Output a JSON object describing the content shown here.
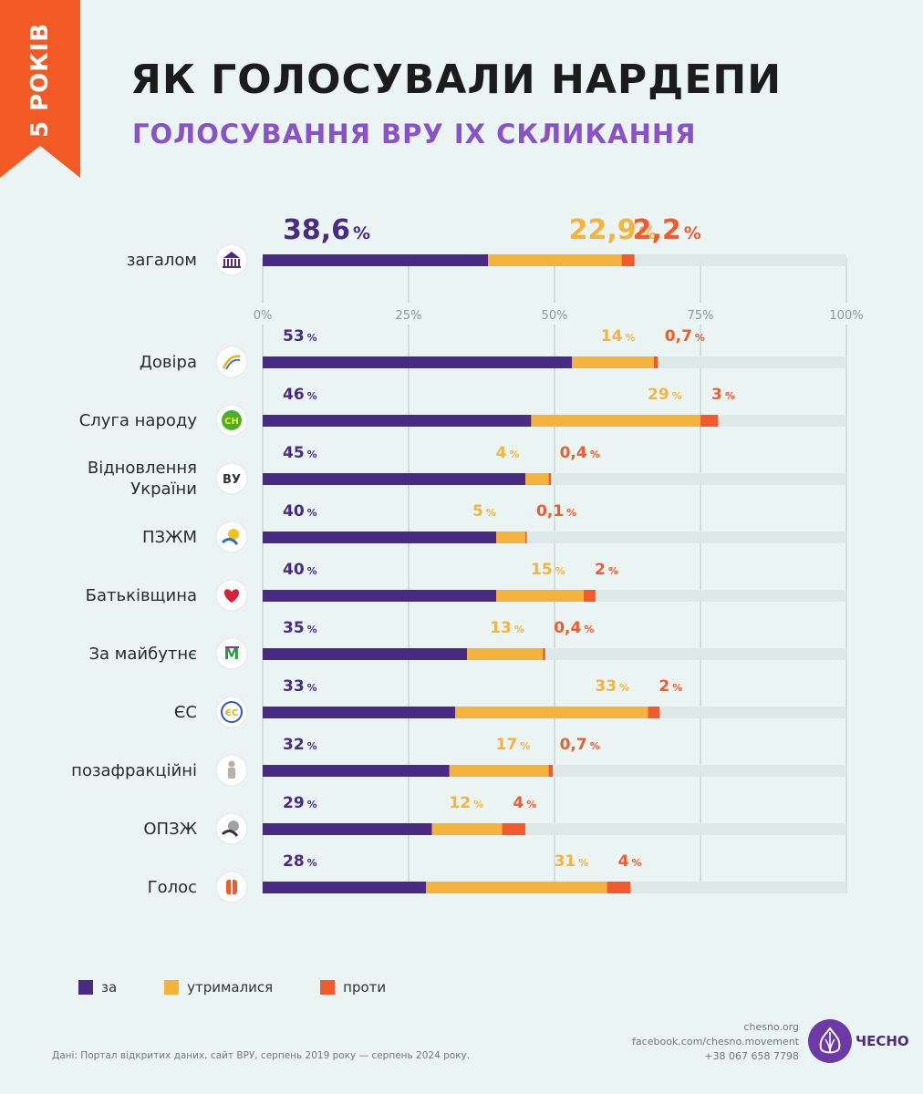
{
  "badge": "5 РОКІВ",
  "title": "ЯК ГОЛОСУВАЛИ НАРДЕПИ",
  "subtitle": "ГОЛОСУВАННЯ ВРУ ІХ СКЛИКАННЯ",
  "colors": {
    "for": "#4a2a82",
    "abstain": "#f5b33b",
    "against": "#f25a2b",
    "track": "#dbe8e7",
    "grid": "#c9d6d4",
    "accent": "#f15a24",
    "subtitle": "#8a52c8"
  },
  "chart_data": {
    "type": "bar",
    "orientation": "horizontal",
    "stacked": true,
    "xlim": [
      0,
      100
    ],
    "ticks": [
      "0%",
      "25%",
      "50%",
      "75%",
      "100%"
    ],
    "grid": true,
    "series_names": [
      "за",
      "утрималися",
      "проти"
    ],
    "overall": {
      "label": "загалом",
      "icon": "parliament-icon",
      "values": [
        38.6,
        22.9,
        2.2
      ],
      "labels": [
        "38,6",
        "22,9",
        "2,2"
      ]
    },
    "rows": [
      {
        "label": [
          "Довіра"
        ],
        "icon": "dovira-logo-icon",
        "values": [
          53,
          14,
          0.7
        ],
        "labels": [
          "53",
          "14",
          "0,7"
        ]
      },
      {
        "label": [
          "Слуга народу"
        ],
        "icon": "sluha-narodu-logo-icon",
        "icon_text": "СН",
        "values": [
          46,
          29,
          3
        ],
        "labels": [
          "46",
          "29",
          "3"
        ]
      },
      {
        "label": [
          "Відновлення",
          "України"
        ],
        "icon": "vidnovlennia-logo-icon",
        "icon_text": "ВУ",
        "values": [
          45,
          4,
          0.4
        ],
        "labels": [
          "45",
          "4",
          "0,4"
        ]
      },
      {
        "label": [
          "ПЗЖМ"
        ],
        "icon": "pzzhm-logo-icon",
        "values": [
          40,
          5,
          0.1
        ],
        "labels": [
          "40",
          "5",
          "0,1"
        ]
      },
      {
        "label": [
          "Батьківщина"
        ],
        "icon": "heart-icon",
        "values": [
          40,
          15,
          2
        ],
        "labels": [
          "40",
          "15",
          "2"
        ]
      },
      {
        "label": [
          "За майбутнє"
        ],
        "icon": "za-maibutnie-logo-icon",
        "icon_text": "М",
        "values": [
          35,
          13,
          0.4
        ],
        "labels": [
          "35",
          "13",
          "0,4"
        ]
      },
      {
        "label": [
          "ЄС"
        ],
        "icon": "yes-logo-icon",
        "icon_text": "ЄС",
        "values": [
          33,
          33,
          2
        ],
        "labels": [
          "33",
          "33",
          "2"
        ]
      },
      {
        "label": [
          "позафракційні"
        ],
        "icon": "person-icon",
        "values": [
          32,
          17,
          0.7
        ],
        "labels": [
          "32",
          "17",
          "0,7"
        ]
      },
      {
        "label": [
          "ОПЗЖ"
        ],
        "icon": "opzzh-logo-icon",
        "values": [
          29,
          12,
          4
        ],
        "labels": [
          "29",
          "12",
          "4"
        ]
      },
      {
        "label": [
          "Голос"
        ],
        "icon": "holos-logo-icon",
        "values": [
          28,
          31,
          4
        ],
        "labels": [
          "28",
          "31",
          "4"
        ]
      }
    ]
  },
  "legend": [
    {
      "label": "за"
    },
    {
      "label": "утрималися"
    },
    {
      "label": "проти"
    }
  ],
  "source": "Дані: Портал відкритих даних, сайт ВРУ, серпень 2019 року — серпень 2024 року.",
  "contacts": [
    "chesno.org",
    "facebook.com/chesno.movement",
    "+38 067 658 7798"
  ],
  "brand": "ЧЕСНО"
}
